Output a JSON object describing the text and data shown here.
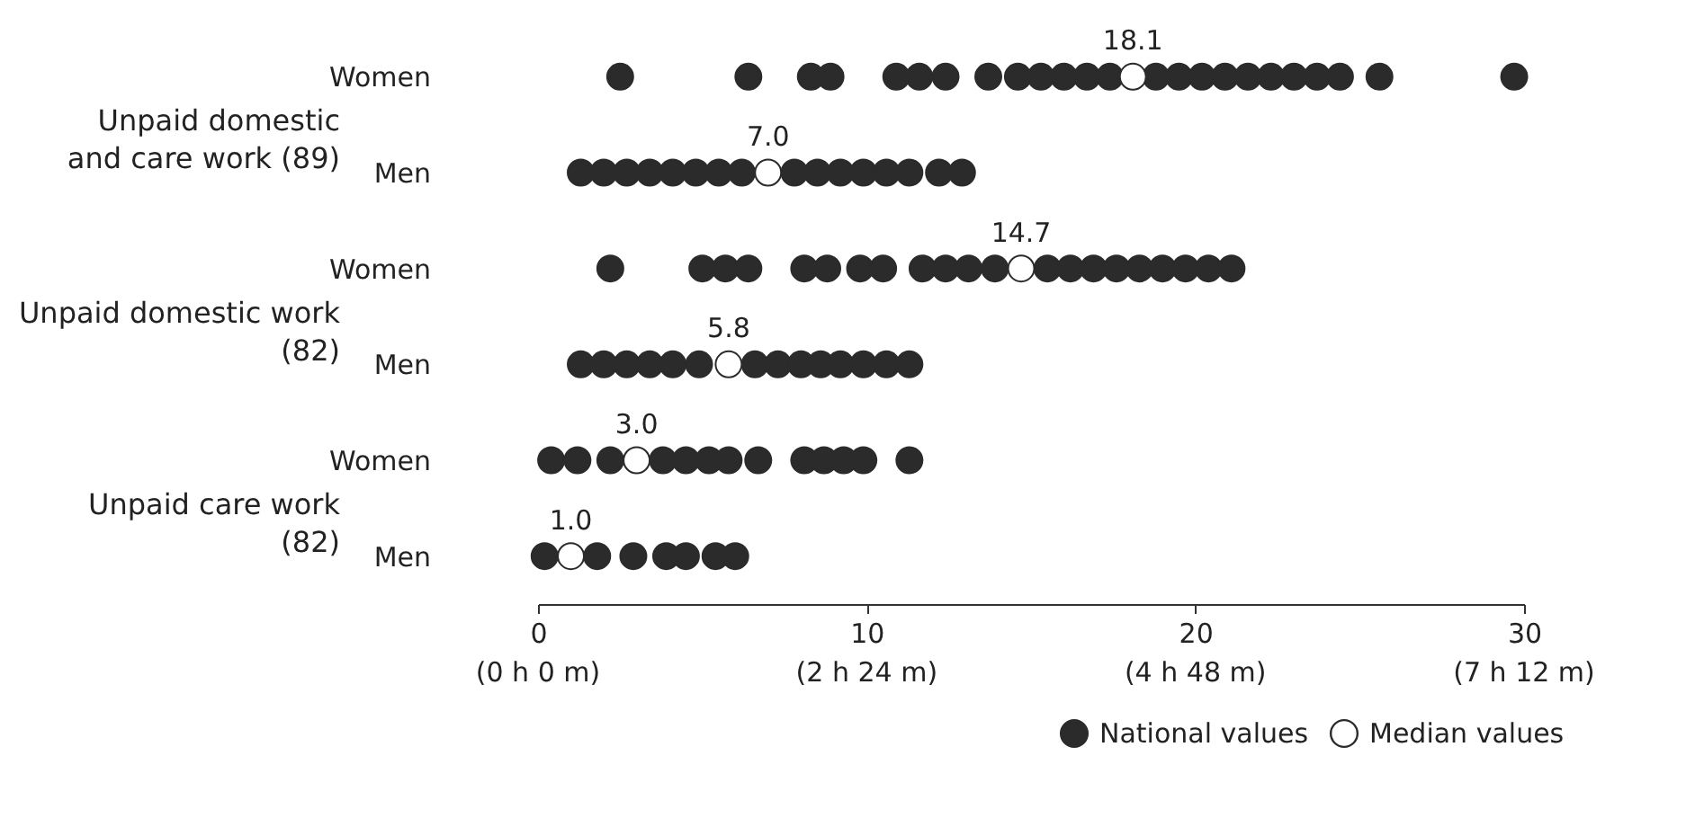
{
  "chart_data": {
    "type": "scatter",
    "orientation": "horizontal",
    "categories": [
      "Women",
      "Men",
      "Women",
      "Men",
      "Women",
      "Men"
    ],
    "annotations": [
      "Unpaid domestic\nand care work (89)",
      "Unpaid domestic work\n(82)",
      "Unpaid care work\n(82)",
      "(0 h 0 m)",
      "(2 h 24 m)",
      "(4 h 48 m)",
      "(7 h 12 m)"
    ],
    "series": [
      {
        "name": "National values",
        "color": "#2b2b2b",
        "values": [
          2.5,
          1.3,
          2.2,
          1.3,
          0.4,
          0.2
        ]
      },
      {
        "color": "#2b2b2b",
        "values": [
          6.4,
          2.0,
          5.0,
          2.0,
          1.2,
          1.8
        ]
      },
      {
        "color": "#2b2b2b",
        "values": [
          8.3,
          2.7,
          5.7,
          2.7,
          2.2,
          2.9
        ]
      },
      {
        "color": "#2b2b2b",
        "values": [
          8.9,
          3.4,
          6.4,
          3.4,
          3.8,
          3.9
        ]
      },
      {
        "color": "#2b2b2b",
        "values": [
          10.9,
          4.1,
          8.1,
          4.1,
          4.5,
          4.5
        ]
      },
      {
        "color": "#2b2b2b",
        "values": [
          11.6,
          4.8,
          8.8,
          4.9,
          5.2,
          5.4
        ]
      },
      {
        "color": "#2b2b2b",
        "values": [
          12.4,
          5.5,
          9.8,
          6.6,
          5.8,
          6.0
        ]
      },
      {
        "color": "#2b2b2b",
        "values": [
          13.7,
          6.2,
          10.5,
          7.3,
          6.7,
          null
        ]
      },
      {
        "color": "#2b2b2b",
        "values": [
          14.6,
          7.8,
          11.7,
          8.0,
          8.1,
          null
        ]
      },
      {
        "color": "#2b2b2b",
        "values": [
          15.3,
          8.5,
          12.4,
          8.6,
          8.7,
          null
        ]
      },
      {
        "color": "#2b2b2b",
        "values": [
          16.0,
          9.2,
          13.1,
          9.2,
          9.3,
          null
        ]
      },
      {
        "color": "#2b2b2b",
        "values": [
          16.7,
          9.9,
          13.9,
          9.9,
          9.9,
          null
        ]
      },
      {
        "color": "#2b2b2b",
        "values": [
          17.4,
          10.6,
          15.5,
          10.6,
          11.3,
          null
        ]
      },
      {
        "color": "#2b2b2b",
        "values": [
          18.8,
          11.3,
          16.2,
          11.3,
          null,
          null
        ]
      },
      {
        "color": "#2b2b2b",
        "values": [
          19.5,
          12.2,
          16.9,
          null,
          null,
          null
        ]
      },
      {
        "color": "#2b2b2b",
        "values": [
          20.2,
          12.9,
          17.6,
          null,
          null,
          null
        ]
      },
      {
        "color": "#2b2b2b",
        "values": [
          20.9,
          null,
          18.3,
          null,
          null,
          null
        ]
      },
      {
        "color": "#2b2b2b",
        "values": [
          21.6,
          null,
          19.0,
          null,
          null,
          null
        ]
      },
      {
        "color": "#2b2b2b",
        "values": [
          22.3,
          null,
          19.7,
          null,
          null,
          null
        ]
      },
      {
        "color": "#2b2b2b",
        "values": [
          23.0,
          null,
          20.4,
          null,
          null,
          null
        ]
      },
      {
        "color": "#2b2b2b",
        "values": [
          23.7,
          null,
          21.1,
          null,
          null,
          null
        ]
      },
      {
        "color": "#2b2b2b",
        "values": [
          24.4,
          null,
          null,
          null,
          null,
          null
        ]
      },
      {
        "color": "#2b2b2b",
        "values": [
          25.6,
          null,
          null,
          null,
          null,
          null
        ]
      },
      {
        "color": "#2b2b2b",
        "values": [
          29.7,
          null,
          null,
          null,
          null,
          null
        ]
      },
      {
        "name": "Median values",
        "color": "#ffffff",
        "values": [
          18.1,
          7.0,
          14.7,
          5.8,
          3.0,
          1.0
        ],
        "value_labels": [
          "18.1",
          "7.0",
          "14.7",
          "5.8",
          "3.0",
          "1.0"
        ]
      }
    ],
    "xlim": [
      0,
      30
    ],
    "xticks": [
      0,
      10,
      20,
      30
    ],
    "marker": "circle",
    "grid": false,
    "legend": "bottom right"
  }
}
